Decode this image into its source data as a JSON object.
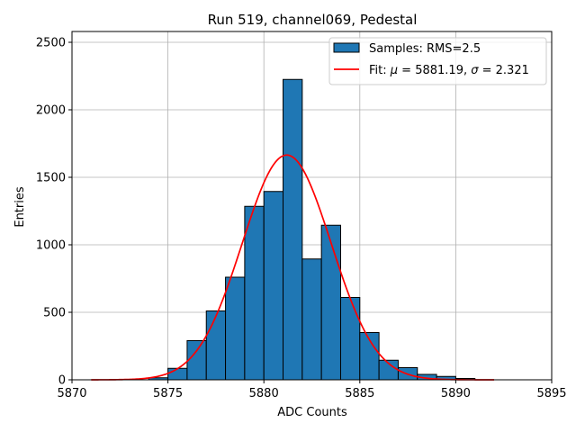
{
  "chart_data": {
    "type": "bar",
    "title": "Run 519, channel069, Pedestal",
    "xlabel": "ADC Counts",
    "ylabel": "Entries",
    "xlim": [
      5870,
      5895
    ],
    "ylim": [
      0,
      2580
    ],
    "xticks": [
      5870,
      5875,
      5880,
      5885,
      5890,
      5895
    ],
    "yticks": [
      0,
      500,
      1000,
      1500,
      2000,
      2500
    ],
    "grid": true,
    "legend_placement": "top-right",
    "bin_edges": [
      5874,
      5875,
      5876,
      5877,
      5878,
      5879,
      5880,
      5881,
      5882,
      5883,
      5884,
      5885,
      5886,
      5887,
      5888,
      5889,
      5890,
      5891
    ],
    "bin_counts": [
      15,
      85,
      290,
      510,
      760,
      1285,
      1395,
      2225,
      895,
      1145,
      610,
      350,
      145,
      90,
      40,
      25,
      10
    ],
    "histogram_color": "#1f77b4",
    "fit": {
      "mu": 5881.19,
      "sigma": 2.321,
      "amplitude": 1665,
      "x_range": [
        5871,
        5892
      ],
      "color": "#ff0000"
    },
    "legend": [
      {
        "label": "Samples: RMS=2.5",
        "kind": "patch",
        "color": "#1f77b4"
      },
      {
        "label_prefix": "Fit: ",
        "mu_symbol": "μ",
        "mu_text": " = 5881.19, ",
        "sigma_symbol": "σ",
        "sigma_text": " = 2.321",
        "kind": "line",
        "color": "#ff0000"
      }
    ]
  }
}
